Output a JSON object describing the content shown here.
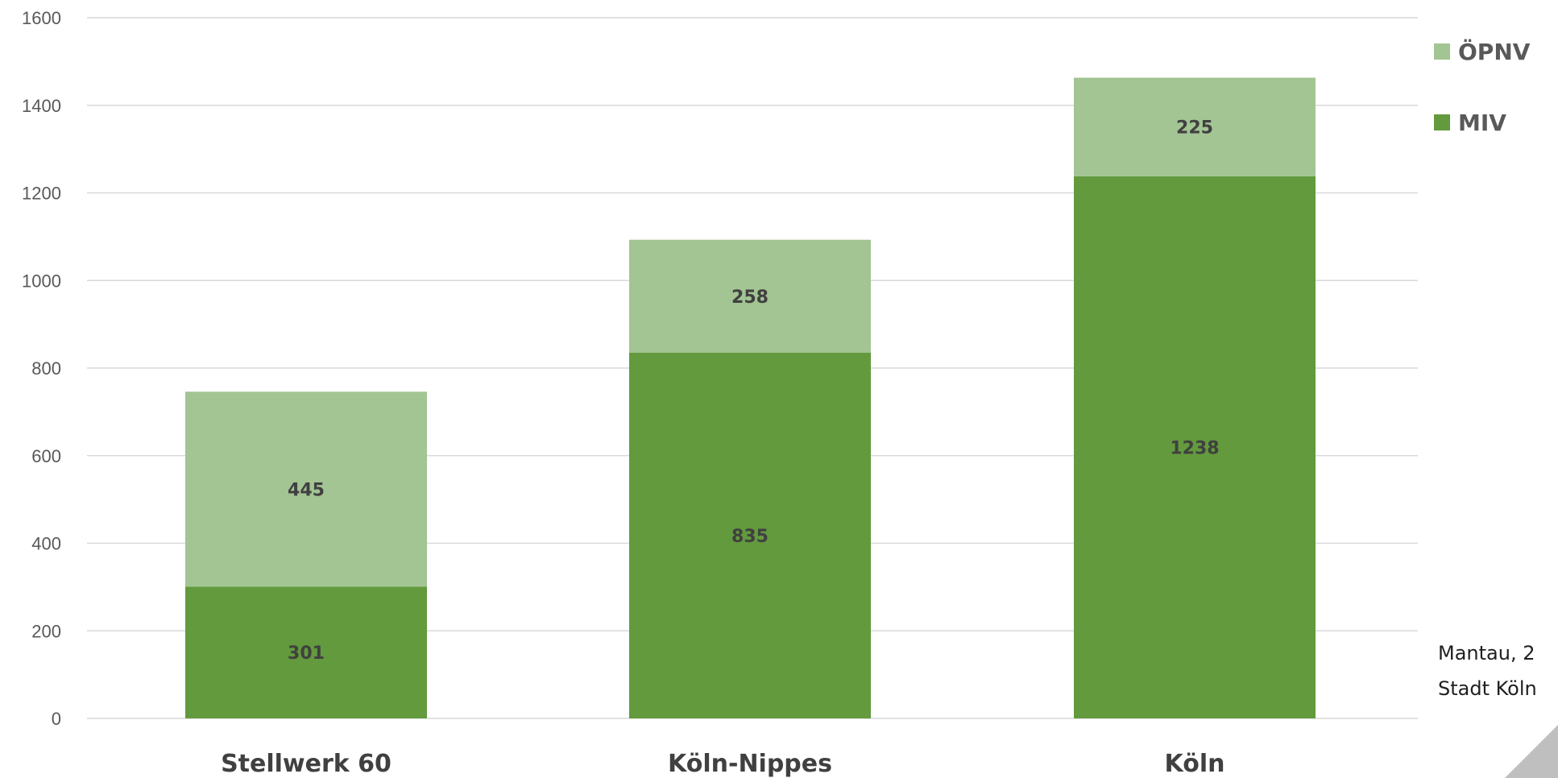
{
  "chart_data": {
    "type": "bar",
    "stacked": true,
    "categories": [
      "Stellwerk 60",
      "Köln-Nippes",
      "Köln"
    ],
    "series": [
      {
        "name": "MIV",
        "values": [
          301,
          835,
          1238
        ],
        "color": "#629a3d"
      },
      {
        "name": "ÖPNV",
        "values": [
          445,
          258,
          225
        ],
        "color": "#a3c493"
      }
    ],
    "yticks": [
      0,
      200,
      400,
      600,
      800,
      1000,
      1200,
      1400,
      1600
    ],
    "ylim": [
      0,
      1600
    ],
    "grid": true,
    "legend_position": "top-right",
    "legend_order": [
      "ÖPNV",
      "MIV"
    ]
  },
  "notes": [
    "Mantau, 2",
    "Stadt Köln"
  ],
  "colors": {
    "grid": "#d9d9d9",
    "corner": "#bfbfbf"
  }
}
